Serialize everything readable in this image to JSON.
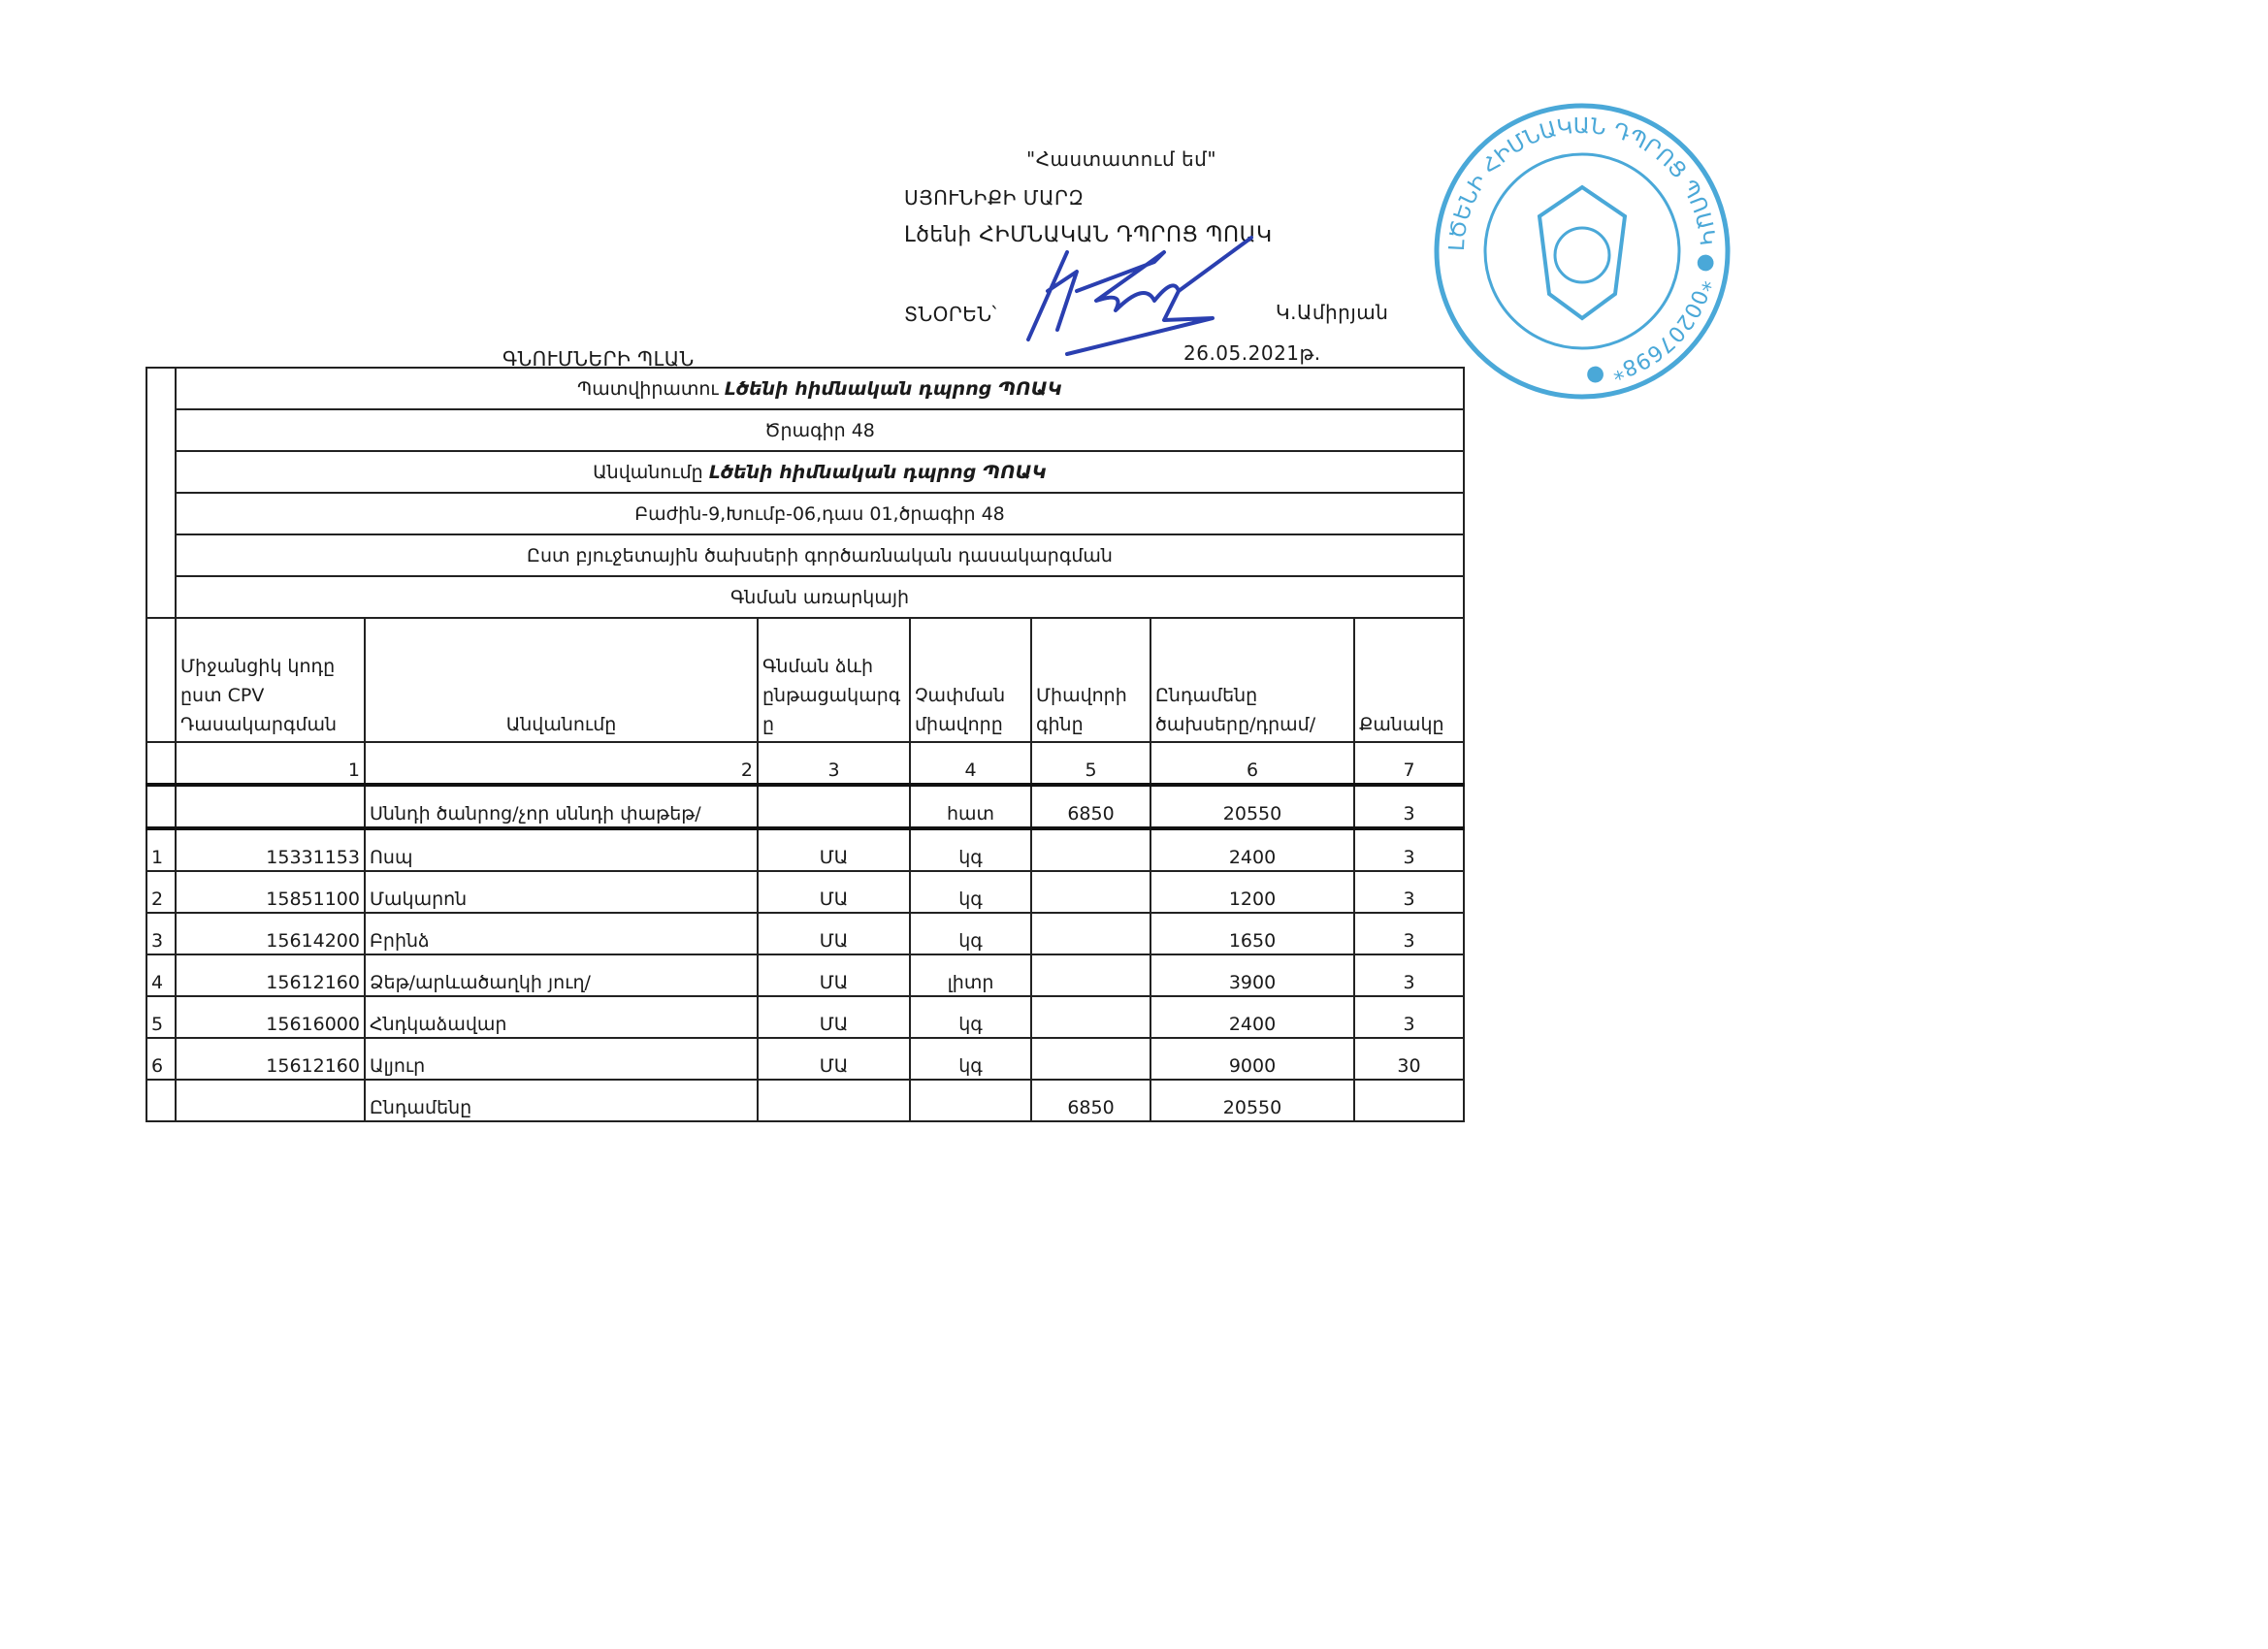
{
  "approval": {
    "approved": "\"Հաստատում եմ\"",
    "region": "ՍՅՈՒՆԻՔԻ ՄԱՐԶ",
    "school": "Լծենի   ՀԻՄՆԱԿԱՆ ԴՊՐՈՑ  ՊՈԱԿ",
    "director_label": "ՏՆՕՐԵՆ՝",
    "director_name": "Կ.Ամիրյան",
    "date": "26.05.2021թ."
  },
  "doc_title": "ԳՆՈՒՄՆԵՐԻ     ՊԼԱՆ",
  "stamp": {
    "text": "ԼԾԵՆԻ ՀԻՄՆԱԿԱՆ ԴՊՐՈՑ ՊՈԱԿ",
    "number": "*00207698*",
    "color": "#4aa8d8"
  },
  "signature_color": "#2a3fb0",
  "bands": [
    {
      "label": "Պատվիրատու",
      "value": "Լծենի հիմնական դպրոց  ՊՈԱԿ"
    },
    {
      "label": "Ծրագիր  48",
      "value": ""
    },
    {
      "label": "Անվանումը",
      "value": "Լծենի հիմնական դպրոց  ՊՈԱԿ"
    },
    {
      "label": "Բաժին-9,Խումբ-06,դաս 01,ծրագիր 48",
      "value": ""
    },
    {
      "label": "Ըստ բյուջետային ծախսերի գործառնական դասակարգման",
      "value": ""
    },
    {
      "label": "Գնման առարկայի",
      "value": ""
    }
  ],
  "columns": [
    "Միջանցիկ կոդը ըստ CPV Դասակարգման",
    "Անվանումը",
    "Գնման ձևի ընթացակարգ ը",
    "Չափման միավորը",
    "Միավորի գինը",
    "Ընդամենը ծախսերը/դրամ/",
    "Քանակը"
  ],
  "column_numbers": [
    "1",
    "2",
    "3",
    "4",
    "5",
    "6",
    "7"
  ],
  "group_row": {
    "name": "Սննդի ծանրոց/չոր սննդի փաթեթ/",
    "unit": "հատ",
    "price": "6850",
    "total": "20550",
    "qty": "3"
  },
  "rows": [
    {
      "n": "1",
      "code": "15331153",
      "name": "Ոսպ",
      "proc": "ՄԱ",
      "unit": "կգ",
      "price": "",
      "total": "2400",
      "qty": "3"
    },
    {
      "n": "2",
      "code": "15851100",
      "name": "Մակարոն",
      "proc": "ՄԱ",
      "unit": "կգ",
      "price": "",
      "total": "1200",
      "qty": "3"
    },
    {
      "n": "3",
      "code": "15614200",
      "name": "Բրինձ",
      "proc": "ՄԱ",
      "unit": "կգ",
      "price": "",
      "total": "1650",
      "qty": "3"
    },
    {
      "n": "4",
      "code": "15612160",
      "name": "Ձեթ/արևածաղկի յուղ/",
      "proc": "ՄԱ",
      "unit": "լիտր",
      "price": "",
      "total": "3900",
      "qty": "3"
    },
    {
      "n": "5",
      "code": "15616000",
      "name": "Հնդկաձավար",
      "proc": "ՄԱ",
      "unit": "կգ",
      "price": "",
      "total": "2400",
      "qty": "3"
    },
    {
      "n": "6",
      "code": "15612160",
      "name": "Ալյուր",
      "proc": "ՄԱ",
      "unit": "կգ",
      "price": "",
      "total": "9000",
      "qty": "30"
    }
  ],
  "total_row": {
    "label": "Ընդամենը",
    "price": "6850",
    "total": "20550"
  }
}
